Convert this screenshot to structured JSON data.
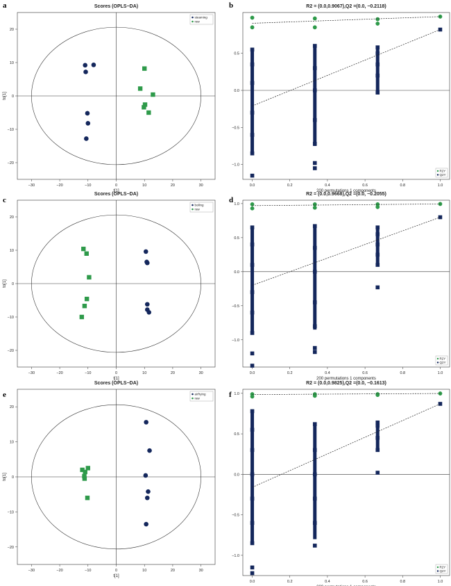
{
  "colors": {
    "navy": "#14275c",
    "green": "#2e9a4a",
    "axis": "#333333"
  },
  "panel_letters": [
    "a",
    "b",
    "c",
    "d",
    "e",
    "f"
  ],
  "chart_data": [
    {
      "type": "scatter",
      "panel": "a",
      "title": "Scores (OPLS−DA)",
      "xlabel": "t[1]",
      "ylabel": "to[1]",
      "xlim": [
        -35,
        35
      ],
      "ylim": [
        -25,
        25
      ],
      "xticks": [
        -30,
        -20,
        -10,
        0,
        10,
        20,
        30
      ],
      "yticks": [
        -20,
        -10,
        0,
        10,
        20
      ],
      "ellipse": {
        "rx": 30,
        "ry": 20.6
      },
      "legend": [
        "steaming",
        "raw"
      ],
      "series": [
        {
          "name": "steaming",
          "marker": "circle",
          "color": "#14275c",
          "points": [
            [
              -11,
              9.2
            ],
            [
              -10.8,
              7.2
            ],
            [
              -8,
              9.3
            ],
            [
              -10.2,
              -5.2
            ],
            [
              -10,
              -8.2
            ],
            [
              -10.6,
              -12.8
            ]
          ]
        },
        {
          "name": "raw",
          "marker": "square",
          "color": "#2e9a4a",
          "points": [
            [
              10,
              8.2
            ],
            [
              8.5,
              2.2
            ],
            [
              13,
              0.4
            ],
            [
              10.2,
              -2.6
            ],
            [
              9.8,
              -3.4
            ],
            [
              11.5,
              -5
            ]
          ]
        }
      ]
    },
    {
      "type": "scatter",
      "panel": "b",
      "title": "R2 = (0.0,0.9067),Q2 =(0.0, −0.2118)",
      "xlabel": "200 permutations 1 components",
      "ylabel": "",
      "xlim": [
        -0.05,
        1.05
      ],
      "ylim": [
        -1.2,
        1.05
      ],
      "xticks": [
        0.0,
        0.2,
        0.4,
        0.6,
        0.8,
        1.0
      ],
      "yticks": [
        -1.0,
        -0.5,
        0.0,
        0.5
      ],
      "ytick_labels": [
        "−1.0",
        "−0.5",
        "0.0",
        "0.5"
      ],
      "legend": [
        "R2Y",
        "Q2Y"
      ],
      "r2_line": [
        [
          0,
          0.905
        ],
        [
          1,
          0.995
        ]
      ],
      "q2_line": [
        [
          0,
          -0.21
        ],
        [
          1,
          0.82
        ]
      ],
      "r2_points": [
        [
          0,
          0.85
        ],
        [
          0,
          0.98
        ],
        [
          0.333,
          0.85
        ],
        [
          0.333,
          0.97
        ],
        [
          0.667,
          0.9
        ],
        [
          0.667,
          0.96
        ],
        [
          1,
          0.995
        ]
      ],
      "q2_points": [
        [
          0,
          -1.15
        ],
        [
          0,
          -0.85
        ],
        [
          0,
          -0.6
        ],
        [
          0,
          -0.3
        ],
        [
          0,
          0.1
        ],
        [
          0,
          0.35
        ],
        [
          0,
          0.55
        ],
        [
          0.333,
          -1.05
        ],
        [
          0.333,
          -0.98
        ],
        [
          0.333,
          -0.72
        ],
        [
          0.333,
          -0.4
        ],
        [
          0.333,
          0.0
        ],
        [
          0.333,
          0.3
        ],
        [
          0.333,
          0.6
        ],
        [
          0.667,
          -0.03
        ],
        [
          0.667,
          0.2
        ],
        [
          0.667,
          0.35
        ],
        [
          0.667,
          0.5
        ],
        [
          0.667,
          0.58
        ],
        [
          1,
          0.82
        ]
      ],
      "q2_bars": [
        [
          0,
          -0.85,
          0.55
        ],
        [
          0.333,
          -0.75,
          0.6
        ],
        [
          0.667,
          -0.03,
          0.58
        ]
      ]
    },
    {
      "type": "scatter",
      "panel": "c",
      "title": "Scores (OPLS−DA)",
      "xlabel": "t[1]",
      "ylabel": "to[1]",
      "xlim": [
        -35,
        35
      ],
      "ylim": [
        -25,
        25
      ],
      "xticks": [
        -30,
        -20,
        -10,
        0,
        10,
        20,
        30
      ],
      "yticks": [
        -20,
        -10,
        0,
        10,
        20
      ],
      "ellipse": {
        "rx": 30,
        "ry": 20.6
      },
      "legend": [
        "boiling",
        "raw"
      ],
      "series": [
        {
          "name": "boiling",
          "marker": "circle",
          "color": "#14275c",
          "points": [
            [
              10.5,
              9.6
            ],
            [
              10.8,
              6.5
            ],
            [
              11,
              6.2
            ],
            [
              11,
              -6.2
            ],
            [
              11,
              -7.8
            ],
            [
              11.6,
              -8.6
            ]
          ]
        },
        {
          "name": "raw",
          "marker": "square",
          "color": "#2e9a4a",
          "points": [
            [
              -11.6,
              10.4
            ],
            [
              -10.5,
              9
            ],
            [
              -9.6,
              1.9
            ],
            [
              -10.4,
              -4.6
            ],
            [
              -11.2,
              -6.7
            ],
            [
              -12.2,
              -10
            ]
          ]
        }
      ]
    },
    {
      "type": "scatter",
      "panel": "d",
      "title": "R2 = (0.0,0.9668),Q2 =(0.0, −0.2055)",
      "xlabel": "200 permutations 1 components",
      "ylabel": "",
      "xlim": [
        -0.05,
        1.05
      ],
      "ylim": [
        -1.4,
        1.05
      ],
      "xticks": [
        0.0,
        0.2,
        0.4,
        0.6,
        0.8,
        1.0
      ],
      "yticks": [
        -1.0,
        -0.5,
        0.0,
        0.5,
        1.0
      ],
      "ytick_labels": [
        "−1.0",
        "−0.5",
        "0.0",
        "0.5",
        "1.0"
      ],
      "legend": [
        "R2Y",
        "Q2Y"
      ],
      "r2_line": [
        [
          0,
          0.97
        ],
        [
          1,
          0.995
        ]
      ],
      "q2_line": [
        [
          0,
          -0.2
        ],
        [
          1,
          0.8
        ]
      ],
      "r2_points": [
        [
          0,
          0.93
        ],
        [
          0,
          0.99
        ],
        [
          0.333,
          0.94
        ],
        [
          0.333,
          0.99
        ],
        [
          0.667,
          0.95
        ],
        [
          0.667,
          0.99
        ],
        [
          1,
          0.995
        ]
      ],
      "q2_points": [
        [
          0,
          -1.38
        ],
        [
          0,
          -1.2
        ],
        [
          0,
          -0.9
        ],
        [
          0,
          -0.6
        ],
        [
          0,
          -0.3
        ],
        [
          0,
          0.1
        ],
        [
          0,
          0.4
        ],
        [
          0,
          0.65
        ],
        [
          0.333,
          -1.18
        ],
        [
          0.333,
          -1.12
        ],
        [
          0.333,
          -0.8
        ],
        [
          0.333,
          -0.45
        ],
        [
          0.333,
          0.0
        ],
        [
          0.333,
          0.35
        ],
        [
          0.333,
          0.67
        ],
        [
          0.667,
          -0.23
        ],
        [
          0.667,
          0.1
        ],
        [
          0.667,
          0.25
        ],
        [
          0.667,
          0.4
        ],
        [
          0.667,
          0.55
        ],
        [
          0.667,
          0.65
        ],
        [
          1,
          0.8
        ]
      ],
      "q2_bars": [
        [
          0,
          -0.9,
          0.65
        ],
        [
          0.333,
          -0.85,
          0.67
        ],
        [
          0.667,
          0.1,
          0.65
        ]
      ]
    },
    {
      "type": "scatter",
      "panel": "e",
      "title": "Scores (OPLS−DA)",
      "xlabel": "t[1]",
      "ylabel": "to[1]",
      "xlim": [
        -35,
        35
      ],
      "ylim": [
        -25,
        25
      ],
      "xticks": [
        -30,
        -20,
        -10,
        0,
        10,
        20,
        30
      ],
      "yticks": [
        -20,
        -10,
        0,
        10,
        20
      ],
      "ellipse": {
        "rx": 30,
        "ry": 20.6
      },
      "legend": [
        "airfrying",
        "raw"
      ],
      "series": [
        {
          "name": "airfrying",
          "marker": "circle",
          "color": "#14275c",
          "points": [
            [
              10.6,
              15.6
            ],
            [
              11.8,
              7.5
            ],
            [
              10.4,
              0.4
            ],
            [
              11.3,
              -4.2
            ],
            [
              11,
              -6
            ],
            [
              10.6,
              -13.5
            ]
          ]
        },
        {
          "name": "raw",
          "marker": "square",
          "color": "#2e9a4a",
          "points": [
            [
              -10,
              2.5
            ],
            [
              -12,
              2
            ],
            [
              -11,
              1.4
            ],
            [
              -11.3,
              0.2
            ],
            [
              -11.2,
              -0.5
            ],
            [
              -10.2,
              -6
            ]
          ]
        }
      ]
    },
    {
      "type": "scatter",
      "panel": "f",
      "title": "R2 = (0.0,0.9825),Q2 =(0.0, −0.1613)",
      "xlabel": "200 permutations 1 components",
      "ylabel": "",
      "xlim": [
        -0.05,
        1.05
      ],
      "ylim": [
        -1.25,
        1.05
      ],
      "xticks": [
        0.0,
        0.2,
        0.4,
        0.6,
        0.8,
        1.0
      ],
      "yticks": [
        -1.0,
        -0.5,
        0.0,
        0.5,
        1.0
      ],
      "ytick_labels": [
        "−1.0",
        "−0.5",
        "0.0",
        "0.5",
        "1.0"
      ],
      "legend": [
        "R2Y",
        "Q2Y"
      ],
      "r2_line": [
        [
          0,
          0.985
        ],
        [
          1,
          0.998
        ]
      ],
      "q2_line": [
        [
          0,
          -0.16
        ],
        [
          1,
          0.87
        ]
      ],
      "r2_points": [
        [
          0,
          0.96
        ],
        [
          0,
          0.99
        ],
        [
          0.333,
          0.97
        ],
        [
          0.333,
          0.99
        ],
        [
          0.667,
          0.98
        ],
        [
          0.667,
          0.99
        ],
        [
          1,
          0.998
        ]
      ],
      "q2_points": [
        [
          0,
          -1.22
        ],
        [
          0,
          -1.15
        ],
        [
          0,
          -0.85
        ],
        [
          0,
          -0.6
        ],
        [
          0,
          -0.3
        ],
        [
          0,
          0.0
        ],
        [
          0,
          0.3
        ],
        [
          0,
          0.55
        ],
        [
          0,
          0.78
        ],
        [
          0.333,
          -0.88
        ],
        [
          0.333,
          -0.6
        ],
        [
          0.333,
          -0.3
        ],
        [
          0.333,
          0.0
        ],
        [
          0.333,
          0.3
        ],
        [
          0.333,
          0.62
        ],
        [
          0.667,
          0.02
        ],
        [
          0.667,
          0.3
        ],
        [
          0.667,
          0.45
        ],
        [
          0.667,
          0.6
        ],
        [
          0.667,
          0.64
        ],
        [
          1,
          0.87
        ]
      ],
      "q2_bars": [
        [
          0,
          -0.85,
          0.8
        ],
        [
          0.333,
          -0.8,
          0.62
        ],
        [
          0.667,
          0.3,
          0.64
        ]
      ]
    }
  ]
}
